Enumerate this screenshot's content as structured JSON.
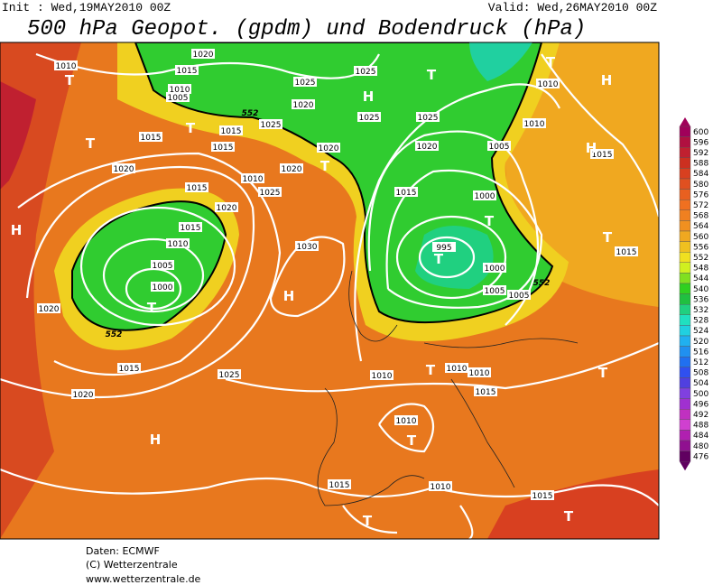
{
  "header": {
    "init": "Init : Wed,19MAY2010 00Z",
    "valid": "Valid: Wed,26MAY2010 00Z",
    "title": "500 hPa Geopot. (gpdm) und Bodendruck (hPa)"
  },
  "legend": {
    "levels": [
      600,
      596,
      592,
      588,
      584,
      580,
      576,
      572,
      568,
      564,
      560,
      556,
      552,
      548,
      544,
      540,
      536,
      532,
      528,
      524,
      520,
      516,
      512,
      508,
      504,
      500,
      496,
      492,
      488,
      484,
      480,
      476
    ],
    "colors": [
      "#a0005a",
      "#b01040",
      "#c02030",
      "#cc3020",
      "#d84020",
      "#e05020",
      "#e86020",
      "#f07020",
      "#f08020",
      "#f09020",
      "#f0a820",
      "#f0c020",
      "#f0e020",
      "#d0f020",
      "#80e020",
      "#30d020",
      "#20c040",
      "#20d080",
      "#20e0c0",
      "#20d0e0",
      "#20b0f0",
      "#2090f0",
      "#2070f0",
      "#3050f0",
      "#5040e0",
      "#8040e0",
      "#a030d0",
      "#c030c0",
      "#d040d0",
      "#b020b0",
      "#901090",
      "#600060"
    ]
  },
  "map": {
    "isobar_labels": [
      1010,
      1015,
      1020,
      1010,
      1005,
      1015,
      1015,
      1015,
      1025,
      1025,
      1020,
      1025,
      1025,
      1025,
      1020,
      1020,
      1005,
      1010,
      1010,
      1015,
      1020,
      1020,
      1010,
      1015,
      1020,
      1025,
      1015,
      1000,
      1015,
      1010,
      995,
      1000,
      1030,
      1015,
      1005,
      1000,
      1020,
      1005,
      1005,
      1015,
      1025,
      1010,
      1010,
      1010,
      1020,
      1015,
      1010,
      1015,
      1010,
      1015
    ],
    "highs": [
      "H",
      "H",
      "H",
      "H",
      "H",
      "H"
    ],
    "lows": [
      "T",
      "T",
      "T",
      "T",
      "T",
      "T",
      "T",
      "T",
      "T",
      "T",
      "T",
      "T",
      "T",
      "T",
      "T"
    ],
    "contour_labels": [
      552,
      552,
      552
    ]
  },
  "footer": {
    "source": "Daten: ECMWF",
    "copyright": "(C) Wetterzentrale",
    "url": "www.wetterzentrale.de"
  }
}
